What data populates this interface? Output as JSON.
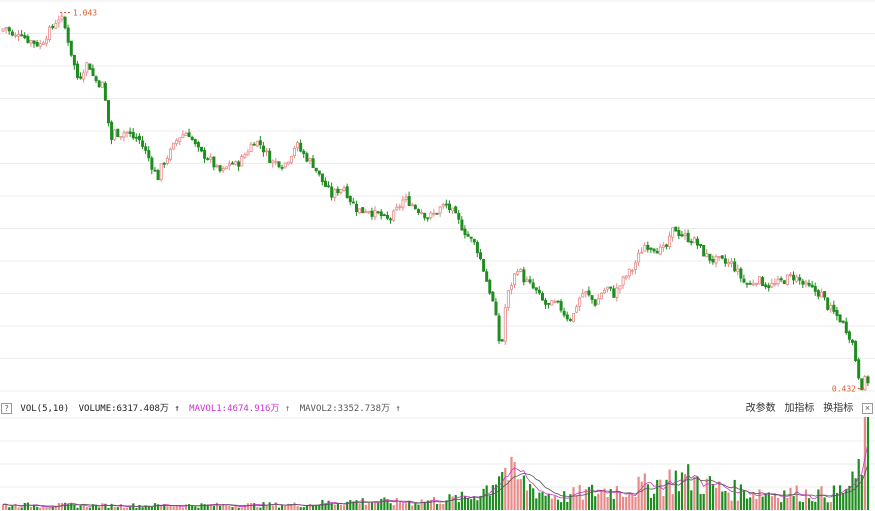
{
  "price_labels": {
    "high": "1.043",
    "low": "0.432"
  },
  "volume_panel": {
    "help": "?",
    "indicator": "VOL(5,10)",
    "volume_label": "VOLUME:6317.408万",
    "mavol1_label": "MAVOL1:4674.916万",
    "mavol2_label": "MAVOL2:3352.738万",
    "arrow": "↑",
    "buttons": {
      "modify_params": "改参数",
      "add_indicator": "加指标",
      "switch_indicator": "换指标",
      "close": "×"
    }
  },
  "colors": {
    "up": "#e88a8a",
    "down": "#1e8c1e",
    "mavol1": "#cc33cc",
    "mavol2": "#555555",
    "label": "#e05a2a",
    "grid": "#ececec"
  },
  "chart_data": {
    "type": "candlestick",
    "ylim": [
      0.42,
      1.06
    ],
    "grid": true,
    "high": 1.043,
    "low": 0.432,
    "close_anchors": [
      [
        0,
        1.01
      ],
      [
        8,
        1.02
      ],
      [
        16,
        1.0
      ],
      [
        22,
        1.015
      ],
      [
        28,
        1.0
      ],
      [
        36,
        0.995
      ],
      [
        42,
        0.99
      ],
      [
        48,
        1.005
      ],
      [
        55,
        1.02
      ],
      [
        60,
        1.035
      ],
      [
        65,
        1.03
      ],
      [
        70,
        1.0
      ],
      [
        75,
        0.965
      ],
      [
        80,
        0.935
      ],
      [
        84,
        0.945
      ],
      [
        88,
        0.96
      ],
      [
        92,
        0.955
      ],
      [
        96,
        0.935
      ],
      [
        100,
        0.93
      ],
      [
        105,
        0.925
      ],
      [
        110,
        0.87
      ],
      [
        113,
        0.835
      ],
      [
        117,
        0.85
      ],
      [
        122,
        0.845
      ],
      [
        128,
        0.85
      ],
      [
        135,
        0.84
      ],
      [
        140,
        0.84
      ],
      [
        145,
        0.825
      ],
      [
        150,
        0.81
      ],
      [
        155,
        0.79
      ],
      [
        160,
        0.775
      ],
      [
        164,
        0.795
      ],
      [
        168,
        0.805
      ],
      [
        174,
        0.82
      ],
      [
        180,
        0.84
      ],
      [
        185,
        0.845
      ],
      [
        190,
        0.85
      ],
      [
        196,
        0.83
      ],
      [
        202,
        0.815
      ],
      [
        208,
        0.81
      ],
      [
        214,
        0.8
      ],
      [
        220,
        0.785
      ],
      [
        226,
        0.785
      ],
      [
        232,
        0.8
      ],
      [
        238,
        0.795
      ],
      [
        244,
        0.805
      ],
      [
        250,
        0.82
      ],
      [
        256,
        0.835
      ],
      [
        262,
        0.83
      ],
      [
        268,
        0.815
      ],
      [
        274,
        0.8
      ],
      [
        280,
        0.8
      ],
      [
        286,
        0.795
      ],
      [
        292,
        0.81
      ],
      [
        298,
        0.83
      ],
      [
        304,
        0.815
      ],
      [
        310,
        0.805
      ],
      [
        316,
        0.795
      ],
      [
        322,
        0.775
      ],
      [
        328,
        0.76
      ],
      [
        334,
        0.745
      ],
      [
        340,
        0.755
      ],
      [
        346,
        0.76
      ],
      [
        352,
        0.74
      ],
      [
        358,
        0.725
      ],
      [
        364,
        0.72
      ],
      [
        370,
        0.725
      ],
      [
        376,
        0.715
      ],
      [
        382,
        0.715
      ],
      [
        388,
        0.705
      ],
      [
        394,
        0.71
      ],
      [
        400,
        0.725
      ],
      [
        406,
        0.74
      ],
      [
        412,
        0.735
      ],
      [
        418,
        0.725
      ],
      [
        424,
        0.72
      ],
      [
        430,
        0.71
      ],
      [
        436,
        0.715
      ],
      [
        442,
        0.725
      ],
      [
        448,
        0.73
      ],
      [
        454,
        0.72
      ],
      [
        460,
        0.705
      ],
      [
        466,
        0.69
      ],
      [
        472,
        0.675
      ],
      [
        478,
        0.665
      ],
      [
        484,
        0.635
      ],
      [
        490,
        0.6
      ],
      [
        494,
        0.58
      ],
      [
        498,
        0.545
      ],
      [
        503,
        0.49
      ],
      [
        508,
        0.575
      ],
      [
        514,
        0.605
      ],
      [
        520,
        0.63
      ],
      [
        526,
        0.61
      ],
      [
        532,
        0.6
      ],
      [
        538,
        0.59
      ],
      [
        544,
        0.575
      ],
      [
        550,
        0.565
      ],
      [
        556,
        0.57
      ],
      [
        562,
        0.565
      ],
      [
        568,
        0.55
      ],
      [
        574,
        0.545
      ],
      [
        580,
        0.575
      ],
      [
        586,
        0.59
      ],
      [
        592,
        0.58
      ],
      [
        598,
        0.57
      ],
      [
        604,
        0.59
      ],
      [
        610,
        0.595
      ],
      [
        616,
        0.585
      ],
      [
        622,
        0.6
      ],
      [
        628,
        0.615
      ],
      [
        634,
        0.625
      ],
      [
        640,
        0.645
      ],
      [
        646,
        0.665
      ],
      [
        652,
        0.665
      ],
      [
        658,
        0.66
      ],
      [
        664,
        0.655
      ],
      [
        670,
        0.665
      ],
      [
        676,
        0.695
      ],
      [
        681,
        0.685
      ],
      [
        686,
        0.68
      ],
      [
        692,
        0.675
      ],
      [
        698,
        0.67
      ],
      [
        704,
        0.655
      ],
      [
        710,
        0.645
      ],
      [
        716,
        0.64
      ],
      [
        722,
        0.64
      ],
      [
        728,
        0.635
      ],
      [
        734,
        0.635
      ],
      [
        740,
        0.62
      ],
      [
        746,
        0.605
      ],
      [
        752,
        0.6
      ],
      [
        758,
        0.61
      ],
      [
        764,
        0.605
      ],
      [
        770,
        0.6
      ],
      [
        776,
        0.6
      ],
      [
        782,
        0.605
      ],
      [
        788,
        0.61
      ],
      [
        794,
        0.615
      ],
      [
        800,
        0.61
      ],
      [
        806,
        0.6
      ],
      [
        812,
        0.595
      ],
      [
        818,
        0.59
      ],
      [
        824,
        0.585
      ],
      [
        830,
        0.565
      ],
      [
        836,
        0.555
      ],
      [
        842,
        0.545
      ],
      [
        848,
        0.53
      ],
      [
        854,
        0.51
      ],
      [
        860,
        0.46
      ],
      [
        863,
        0.435
      ],
      [
        867,
        0.445
      ]
    ],
    "volume": {
      "indicator": "VOL(5,10)",
      "volume": 6317.408,
      "mavol1": 4674.916,
      "mavol2": 3352.738,
      "unit": "万",
      "ylim": [
        0,
        7000
      ],
      "level_anchors": [
        [
          0,
          400
        ],
        [
          100,
          350
        ],
        [
          200,
          380
        ],
        [
          300,
          420
        ],
        [
          330,
          600
        ],
        [
          360,
          700
        ],
        [
          400,
          600
        ],
        [
          440,
          800
        ],
        [
          470,
          1000
        ],
        [
          490,
          2000
        ],
        [
          500,
          3500
        ],
        [
          505,
          3000
        ],
        [
          520,
          2200
        ],
        [
          540,
          1400
        ],
        [
          560,
          1000
        ],
        [
          580,
          1300
        ],
        [
          600,
          1500
        ],
        [
          640,
          1800
        ],
        [
          660,
          2200
        ],
        [
          680,
          2600
        ],
        [
          700,
          2200
        ],
        [
          720,
          1600
        ],
        [
          740,
          1500
        ],
        [
          760,
          1400
        ],
        [
          800,
          1300
        ],
        [
          830,
          1200
        ],
        [
          850,
          1800
        ],
        [
          858,
          3000
        ],
        [
          862,
          5000
        ],
        [
          867,
          6000
        ]
      ]
    }
  }
}
